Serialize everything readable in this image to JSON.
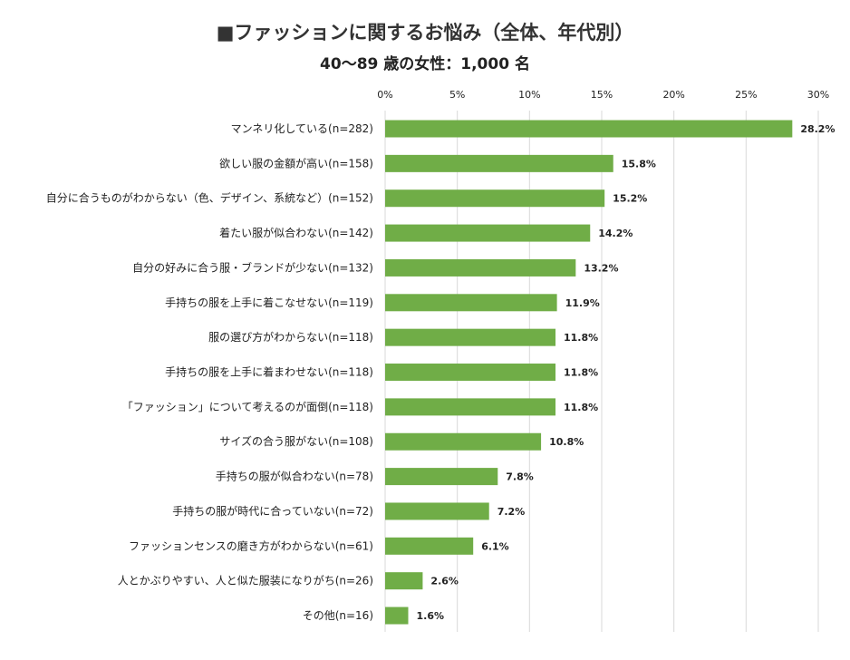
{
  "title": "■ファッションに関するお悩み（全体、年代別）",
  "subtitle": "40～89 歳の女性：1,000 名",
  "colors": {
    "bar": "#70ad47",
    "grid": "#d9d9d9"
  },
  "chart_data": {
    "type": "bar",
    "orientation": "horizontal",
    "title": "■ファッションに関するお悩み（全体、年代別）",
    "subtitle": "40～89 歳の女性：1,000 名",
    "xlim": [
      0,
      30
    ],
    "ticks": [
      0,
      5,
      10,
      15,
      20,
      25,
      30
    ],
    "tick_labels": [
      "0%",
      "5%",
      "10%",
      "15%",
      "20%",
      "25%",
      "30%"
    ],
    "categories": [
      "マンネリ化している(n=282)",
      "欲しい服の金額が高い(n=158)",
      "自分に合うものがわからない（色、デザイン、系統など）(n=152)",
      "着たい服が似合わない(n=142)",
      "自分の好みに合う服・ブランドが少ない(n=132)",
      "手持ちの服を上手に着こなせない(n=119)",
      "服の選び方がわからない(n=118)",
      "手持ちの服を上手に着まわせない(n=118)",
      "「ファッション」について考えるのが面倒(n=118)",
      "サイズの合う服がない(n=108)",
      "手持ちの服が似合わない(n=78)",
      "手持ちの服が時代に合っていない(n=72)",
      "ファッションセンスの磨き方がわからない(n=61)",
      "人とかぶりやすい、人と似た服装になりがち(n=26)",
      "その他(n=16)"
    ],
    "values": [
      28.2,
      15.8,
      15.2,
      14.2,
      13.2,
      11.9,
      11.8,
      11.8,
      11.8,
      10.8,
      7.8,
      7.2,
      6.1,
      2.6,
      1.6
    ],
    "value_labels": [
      "28.2%",
      "15.8%",
      "15.2%",
      "14.2%",
      "13.2%",
      "11.9%",
      "11.8%",
      "11.8%",
      "11.8%",
      "10.8%",
      "7.8%",
      "7.2%",
      "6.1%",
      "2.6%",
      "1.6%"
    ]
  }
}
